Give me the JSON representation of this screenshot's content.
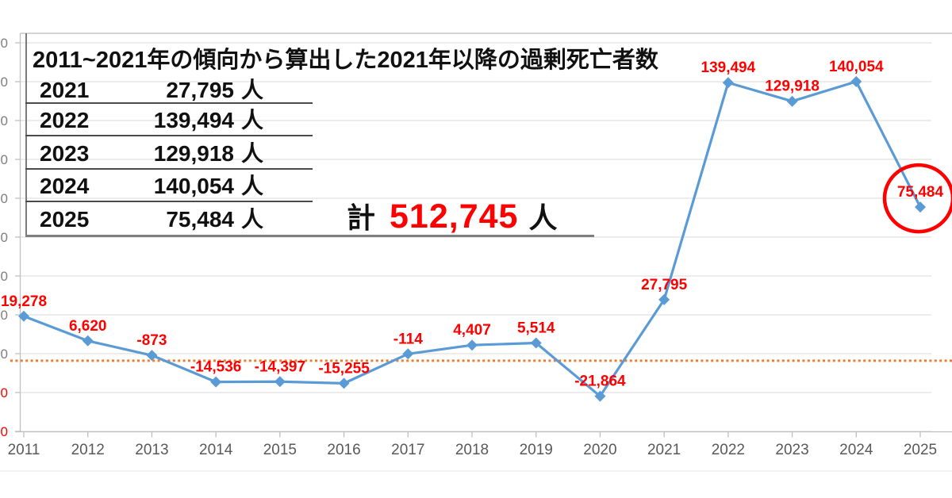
{
  "title": "2011~2021年の傾向から算出した2021年以降の過剰死亡者数",
  "summary_table": {
    "rows": [
      {
        "year": "2021",
        "value": "27,795",
        "unit": "人"
      },
      {
        "year": "2022",
        "value": "139,494",
        "unit": "人"
      },
      {
        "year": "2023",
        "value": "129,918",
        "unit": "人"
      },
      {
        "year": "2024",
        "value": "140,054",
        "unit": "人"
      },
      {
        "year": "2025",
        "value": "75,484",
        "unit": "人"
      }
    ],
    "total": {
      "label": "計",
      "value": "512,745",
      "unit": "人"
    }
  },
  "chart_data": {
    "type": "line",
    "title": "2011~2021年の傾向から算出した2021年以降の過剰死亡者数",
    "categories": [
      "2011",
      "2012",
      "2013",
      "2014",
      "2015",
      "2016",
      "2017",
      "2018",
      "2019",
      "2020",
      "2021",
      "2022",
      "2023",
      "2024",
      "2025"
    ],
    "series": [
      {
        "name": "過剰死亡者数",
        "values": [
          19278,
          6620,
          -873,
          -14536,
          -14397,
          -15255,
          -114,
          4407,
          5514,
          -21864,
          27795,
          139494,
          129918,
          140054,
          75484
        ]
      }
    ],
    "data_labels": [
      "19,278",
      "6,620",
      "-873",
      "-14,536",
      "-14,397",
      "-15,255",
      "-114",
      "4,407",
      "5,514",
      "-21,864",
      "27,795",
      "139,494",
      "129,918",
      "140,054",
      "75,484"
    ],
    "ylim": [
      -40000,
      160000
    ],
    "ytick_step": 20000,
    "ytick_label_visible_fragment": "0",
    "grid": "horizontal",
    "legend": "none",
    "marker": "diamond",
    "reference_line": {
      "value": -3600,
      "style": "dotted",
      "color": "#ED7D31"
    },
    "highlight": {
      "category": "2025",
      "shape": "red-ellipse",
      "color": "#FF0000"
    },
    "colors": {
      "series": "#5B9BD5",
      "data_labels": "#FF0000",
      "tick_labels": "#7F7F7F",
      "negative_tick_labels": "#FF0000",
      "x_tick_labels": "#595959",
      "gridline": "#DADADA",
      "axis": "#BFBFBF"
    }
  }
}
